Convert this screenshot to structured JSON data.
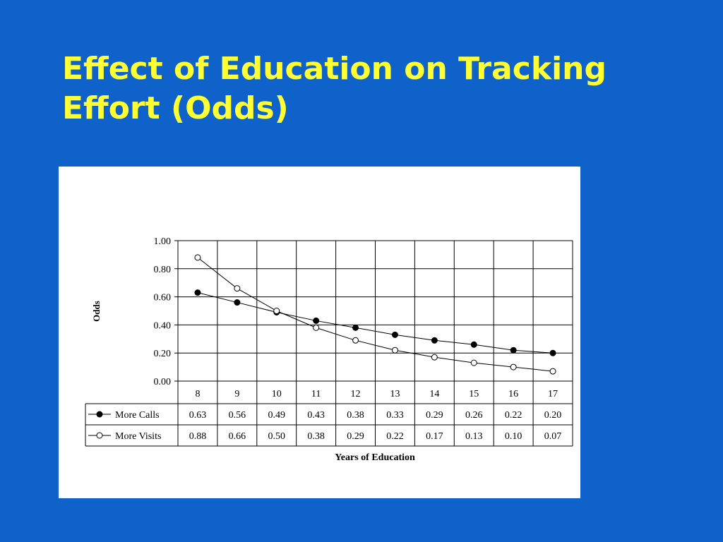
{
  "slide": {
    "title_line1": "Effect of Education on Tracking",
    "title_line2": "Effort (Odds)",
    "background": "#0e62c9",
    "title_color": "#ffff33"
  },
  "chart_data": {
    "type": "line",
    "ylabel": "Odds",
    "xlabel": "Years of Education",
    "categories": [
      "8",
      "9",
      "10",
      "11",
      "12",
      "13",
      "14",
      "15",
      "16",
      "17"
    ],
    "ylim": [
      0,
      1
    ],
    "yticks": [
      "0.00",
      "0.20",
      "0.40",
      "0.60",
      "0.80",
      "1.00"
    ],
    "grid": true,
    "legend": "data-table-left",
    "series": [
      {
        "name": "More Calls",
        "marker": "filled-circle",
        "values": [
          0.63,
          0.56,
          0.49,
          0.43,
          0.38,
          0.33,
          0.29,
          0.26,
          0.22,
          0.2
        ],
        "labels": [
          "0.63",
          "0.56",
          "0.49",
          "0.43",
          "0.38",
          "0.33",
          "0.29",
          "0.26",
          "0.22",
          "0.20"
        ]
      },
      {
        "name": "More Visits",
        "marker": "open-circle",
        "values": [
          0.88,
          0.66,
          0.5,
          0.38,
          0.29,
          0.22,
          0.17,
          0.13,
          0.1,
          0.07
        ],
        "labels": [
          "0.88",
          "0.66",
          "0.50",
          "0.38",
          "0.29",
          "0.22",
          "0.17",
          "0.13",
          "0.10",
          "0.07"
        ]
      }
    ]
  }
}
